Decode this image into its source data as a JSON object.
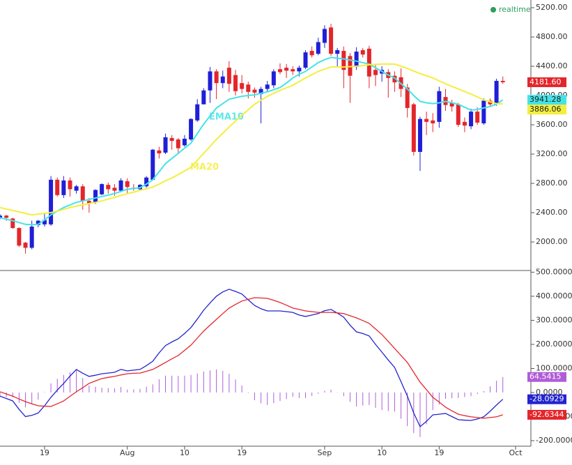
{
  "chart_data": [
    {
      "type": "candlestick",
      "status": "realtime",
      "up_color": "#1f1fd8",
      "down_color": "#e3262b",
      "ylim": [
        1610,
        5305
      ],
      "yticks": [
        {
          "value": 5200,
          "label": "5200.00"
        },
        {
          "value": 4800,
          "label": "4800.00"
        },
        {
          "value": 4400,
          "label": "4400.00"
        },
        {
          "value": 4000,
          "label": "4000.00"
        },
        {
          "value": 3600,
          "label": "3600.00"
        },
        {
          "value": 3200,
          "label": "3200.00"
        },
        {
          "value": 2800,
          "label": "2800.00"
        },
        {
          "value": 2400,
          "label": "2400.00"
        },
        {
          "value": 2000,
          "label": "2000.00"
        }
      ],
      "open": [
        2330,
        2360,
        2320,
        2190,
        1990,
        1920,
        2230,
        2240,
        2240,
        2850,
        2640,
        2840,
        2700,
        2760,
        2560,
        2540,
        2650,
        2780,
        2740,
        2700,
        2830,
        2740,
        2720,
        2760,
        2850,
        3250,
        3220,
        3420,
        3400,
        3320,
        3400,
        3660,
        3880,
        4070,
        4330,
        4170,
        4380,
        4280,
        4170,
        4150,
        4080,
        4020,
        4090,
        4140,
        4360,
        4380,
        4360,
        4330,
        4380,
        4610,
        4570,
        4720,
        4930,
        4570,
        4610,
        4540,
        4390,
        4620,
        4640,
        4350,
        4300,
        4320,
        4270,
        4250,
        4110,
        3880,
        3230,
        3680,
        3660,
        3640,
        3980,
        3900,
        3880,
        3640,
        3580,
        3780,
        3620,
        3930,
        3880,
        4200,
        null,
        null
      ],
      "high": [
        2380,
        2370,
        2330,
        2200,
        2000,
        2290,
        2300,
        2400,
        2900,
        2880,
        2900,
        2880,
        2780,
        2790,
        2600,
        2720,
        2800,
        2810,
        2790,
        2870,
        2870,
        2790,
        2790,
        2900,
        3270,
        3300,
        3480,
        3460,
        3420,
        3460,
        3690,
        3950,
        4100,
        4390,
        4360,
        4340,
        4470,
        4350,
        4280,
        4190,
        4110,
        4120,
        4200,
        4360,
        4440,
        4430,
        4400,
        4410,
        4620,
        4670,
        4790,
        4960,
        4980,
        4650,
        4670,
        4580,
        4660,
        4650,
        4680,
        4420,
        4400,
        4360,
        4330,
        4370,
        4160,
        3900,
        3710,
        3780,
        3760,
        4120,
        4090,
        3940,
        3900,
        3700,
        3820,
        3840,
        3960,
        3960,
        4230,
        4260,
        null,
        null
      ],
      "low": [
        2310,
        2290,
        2180,
        1930,
        1840,
        1900,
        2200,
        2210,
        2220,
        2620,
        2600,
        2620,
        2660,
        2440,
        2400,
        2520,
        2640,
        2660,
        2630,
        2680,
        2660,
        2700,
        2700,
        2740,
        2840,
        3140,
        3200,
        3260,
        3200,
        3300,
        3380,
        3640,
        3880,
        3900,
        3950,
        4100,
        4050,
        4000,
        4030,
        3960,
        3970,
        3620,
        4050,
        4100,
        4290,
        4240,
        4280,
        4260,
        4360,
        4520,
        4550,
        4650,
        4540,
        4400,
        4100,
        3900,
        4350,
        4520,
        4100,
        4130,
        4190,
        3970,
        4050,
        3980,
        3700,
        3180,
        2970,
        3460,
        3500,
        3560,
        3790,
        3780,
        3570,
        3500,
        3540,
        3600,
        3600,
        3850,
        3860,
        4160,
        null,
        null
      ],
      "close": [
        2360,
        2330,
        2190,
        1950,
        1920,
        2210,
        2290,
        2300,
        2850,
        2640,
        2840,
        2720,
        2760,
        2560,
        2530,
        2710,
        2790,
        2720,
        2700,
        2840,
        2750,
        2730,
        2780,
        2880,
        3260,
        3210,
        3430,
        3380,
        3280,
        3410,
        3680,
        3880,
        4070,
        4330,
        4170,
        4260,
        4160,
        4060,
        4090,
        4050,
        4040,
        4090,
        4150,
        4330,
        4320,
        4340,
        4330,
        4380,
        4590,
        4550,
        4730,
        4910,
        4570,
        4620,
        4350,
        4270,
        4600,
        4560,
        4260,
        4280,
        4350,
        4240,
        4180,
        4090,
        3830,
        3230,
        3680,
        3640,
        3620,
        4060,
        3870,
        3850,
        3600,
        3590,
        3780,
        3630,
        3930,
        3880,
        4200,
        4181.6,
        null,
        null
      ],
      "close_last_label": "4181.60",
      "series": [
        {
          "name": "EMA10",
          "color": "#45e3e8",
          "last_label": "3941.28",
          "values": [
            2330,
            2310,
            2290,
            2265,
            2240,
            2235,
            2240,
            2300,
            2370,
            2420,
            2470,
            2505,
            2540,
            2560,
            2580,
            2600,
            2620,
            2640,
            2660,
            2690,
            2720,
            2730,
            2740,
            2790,
            2850,
            2960,
            3070,
            3140,
            3210,
            3280,
            3350,
            3480,
            3610,
            3720,
            3830,
            3890,
            3950,
            3970,
            3990,
            4000,
            4010,
            4030,
            4050,
            4080,
            4110,
            4170,
            4240,
            4290,
            4330,
            4390,
            4450,
            4490,
            4520,
            4510,
            4500,
            4485,
            4470,
            4450,
            4430,
            4380,
            4330,
            4280,
            4240,
            4160,
            4090,
            4000,
            3920,
            3900,
            3890,
            3900,
            3920,
            3900,
            3880,
            3840,
            3800,
            3810,
            3830,
            3850,
            3880,
            3941.28,
            null,
            null
          ]
        },
        {
          "name": "MA20",
          "color": "#f4ee3e",
          "last_label": "3886.06",
          "values": [
            2470,
            2450,
            2430,
            2410,
            2390,
            2370,
            2380,
            2390,
            2400,
            2420,
            2445,
            2470,
            2490,
            2505,
            2525,
            2540,
            2560,
            2585,
            2610,
            2635,
            2660,
            2680,
            2705,
            2725,
            2750,
            2790,
            2835,
            2875,
            2920,
            2970,
            3020,
            3115,
            3210,
            3305,
            3400,
            3485,
            3570,
            3650,
            3730,
            3805,
            3880,
            3935,
            3990,
            4030,
            4070,
            4105,
            4140,
            4190,
            4240,
            4285,
            4330,
            4360,
            4390,
            4390,
            4390,
            4395,
            4400,
            4410,
            4420,
            4425,
            4430,
            4430,
            4430,
            4400,
            4370,
            4335,
            4300,
            4270,
            4240,
            4200,
            4160,
            4125,
            4090,
            4055,
            4020,
            3980,
            3940,
            3915,
            3890,
            3886.06,
            null,
            null
          ]
        }
      ]
    },
    {
      "type": "macd",
      "ylim": [
        -223,
        507
      ],
      "yticks": [
        {
          "value": 500,
          "label": "500.0000"
        },
        {
          "value": 400,
          "label": "400.0000"
        },
        {
          "value": 300,
          "label": "300.0000"
        },
        {
          "value": 200,
          "label": "200.0000"
        },
        {
          "value": 100,
          "label": "100.0000"
        },
        {
          "value": 0,
          "label": "0.0000"
        },
        {
          "value": -100,
          "label": "-100.0000"
        },
        {
          "value": -200,
          "label": "-200.0000"
        }
      ],
      "categories": [
        null,
        null,
        null,
        null,
        null,
        null,
        null,
        "19",
        null,
        null,
        null,
        null,
        null,
        null,
        null,
        null,
        null,
        null,
        null,
        null,
        "Aug",
        null,
        null,
        null,
        null,
        null,
        null,
        null,
        null,
        "10",
        null,
        null,
        null,
        null,
        null,
        null,
        null,
        null,
        "19",
        null,
        null,
        null,
        null,
        null,
        null,
        null,
        null,
        null,
        null,
        null,
        null,
        "Sep",
        null,
        null,
        null,
        null,
        null,
        null,
        null,
        null,
        "10",
        null,
        null,
        null,
        null,
        null,
        null,
        null,
        null,
        "19",
        null,
        null,
        null,
        null,
        null,
        null,
        null,
        null,
        null,
        null,
        null,
        "Oct"
      ],
      "series": [
        {
          "type": "bar",
          "color": "#b05cd8",
          "last_label": "64.5415",
          "values": [
            -18,
            -19,
            -20,
            -43,
            -62,
            -48,
            -30,
            2,
            38,
            57,
            73,
            84,
            93,
            60,
            29,
            24,
            20,
            18,
            17,
            23,
            12,
            13,
            15,
            24,
            34,
            55,
            70,
            70,
            69,
            70,
            73,
            79,
            87,
            92,
            96,
            90,
            78,
            54,
            29,
            -2,
            -32,
            -45,
            -52,
            -44,
            -35,
            -27,
            -18,
            -23,
            -23,
            -14,
            -5,
            7,
            12,
            -1,
            -15,
            -39,
            -58,
            -54,
            -52,
            -64,
            -73,
            -77,
            -79,
            -109,
            -140,
            -169,
            -185,
            -132,
            -73,
            -50,
            -26,
            -24,
            -23,
            -19,
            -15,
            -6,
            6,
            26,
            49,
            64.5415,
            null,
            null
          ]
        },
        {
          "type": "line",
          "color": "#2323d0",
          "last_label": "-28.0929",
          "values": [
            -15,
            -25,
            -35,
            -70,
            -100,
            -95,
            -85,
            -55,
            -20,
            10,
            38,
            68,
            96,
            80,
            67,
            72,
            78,
            81,
            84,
            96,
            90,
            93,
            96,
            112,
            130,
            165,
            195,
            210,
            223,
            245,
            270,
            305,
            342,
            372,
            400,
            418,
            429,
            420,
            409,
            385,
            362,
            348,
            339,
            339,
            339,
            336,
            333,
            322,
            316,
            322,
            328,
            340,
            345,
            330,
            313,
            280,
            252,
            245,
            235,
            200,
            168,
            135,
            104,
            45,
            -15,
            -85,
            -142,
            -120,
            -93,
            -90,
            -87,
            -100,
            -113,
            -115,
            -116,
            -110,
            -101,
            -78,
            -52,
            -28.0929,
            null,
            null
          ]
        },
        {
          "type": "line",
          "color": "#e3262b",
          "last_label": "-92.6344",
          "values": [
            3,
            -6,
            -15,
            -27,
            -38,
            -47,
            -55,
            -57,
            -58,
            -47,
            -35,
            -16,
            3,
            20,
            38,
            48,
            58,
            63,
            67,
            73,
            78,
            80,
            81,
            88,
            96,
            110,
            125,
            140,
            154,
            175,
            197,
            226,
            255,
            280,
            304,
            328,
            351,
            366,
            380,
            387,
            394,
            393,
            391,
            383,
            374,
            363,
            351,
            345,
            339,
            336,
            333,
            333,
            333,
            331,
            328,
            319,
            310,
            299,
            287,
            264,
            241,
            212,
            183,
            154,
            125,
            84,
            43,
            12,
            -20,
            -40,
            -61,
            -76,
            -90,
            -96,
            -101,
            -104,
            -107,
            -104,
            -101,
            -92.6344,
            null,
            null
          ]
        }
      ]
    }
  ]
}
